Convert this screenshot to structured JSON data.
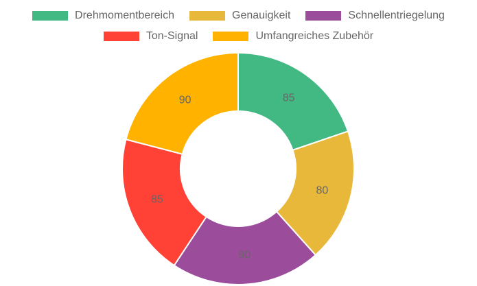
{
  "chart_data": {
    "type": "pie",
    "donut": true,
    "legend_position": "top",
    "categories": [
      "Drehmomentbereich",
      "Genauigkeit",
      "Schnellentriegelung",
      "Ton-Signal",
      "Umfangreiches Zubehör"
    ],
    "values": [
      85,
      80,
      90,
      85,
      90
    ],
    "colors": [
      "#42b883",
      "#e8b83a",
      "#9b4d9b",
      "#ff4136",
      "#ffb300"
    ],
    "data_labels": [
      "85",
      "80",
      "90",
      "85",
      "90"
    ]
  }
}
